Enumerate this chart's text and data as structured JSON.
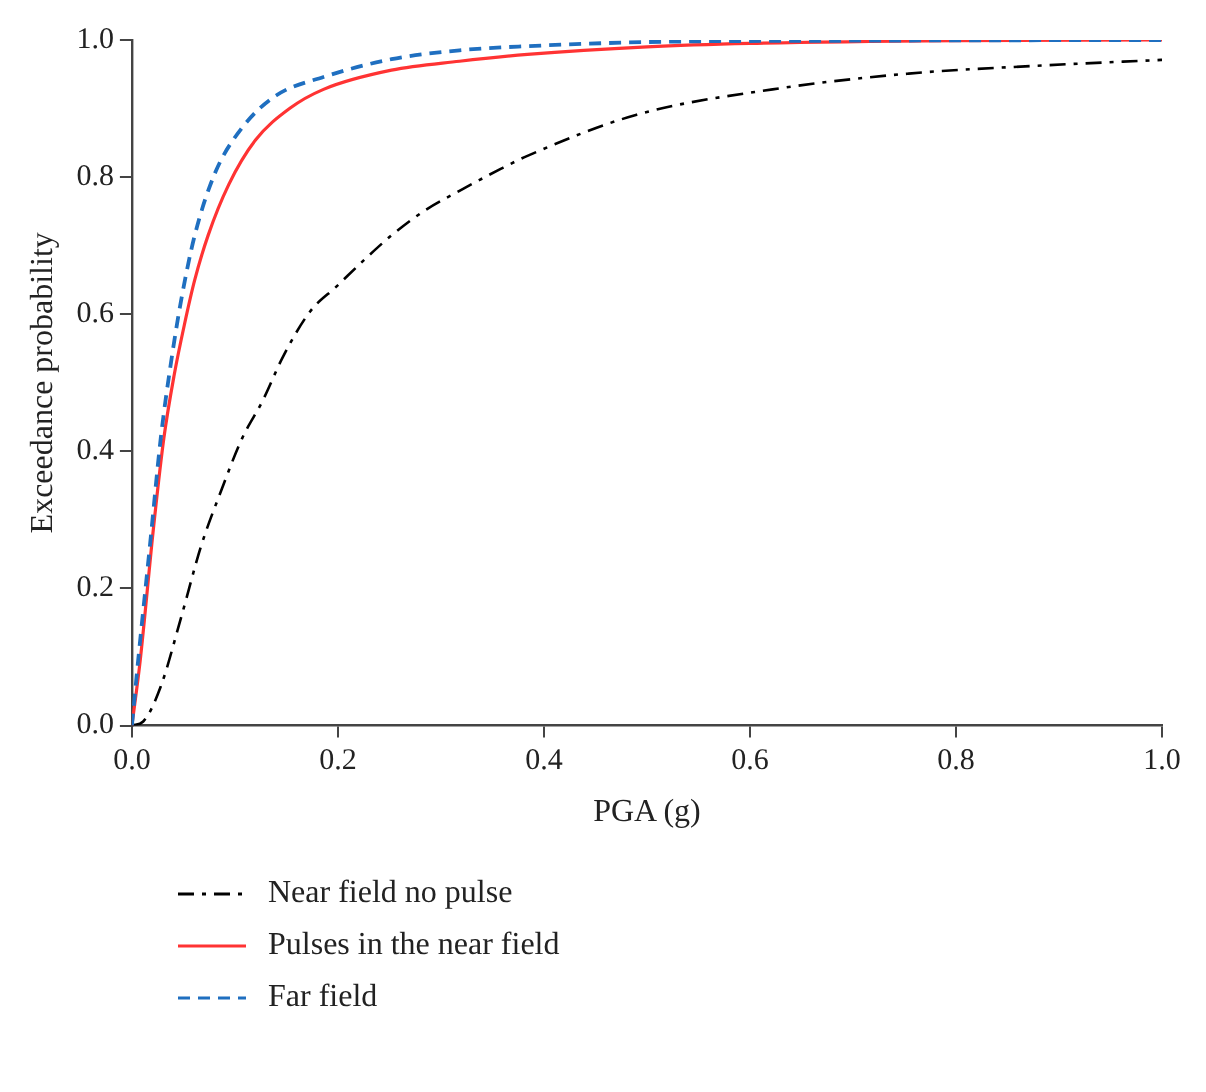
{
  "chart_data": {
    "type": "line",
    "xlabel": "PGA (g)",
    "ylabel": "Exceedance probability",
    "xlim": [
      0,
      1
    ],
    "ylim": [
      0,
      1
    ],
    "xticks": [
      {
        "value": 0,
        "label": "0.0"
      },
      {
        "value": 0.2,
        "label": "0.2"
      },
      {
        "value": 0.4,
        "label": "0.4"
      },
      {
        "value": 0.6,
        "label": "0.6"
      },
      {
        "value": 0.8,
        "label": "0.8"
      },
      {
        "value": 1,
        "label": "1.0"
      }
    ],
    "yticks": [
      {
        "value": 0,
        "label": "0.0"
      },
      {
        "value": 0.2,
        "label": "0.2"
      },
      {
        "value": 0.4,
        "label": "0.4"
      },
      {
        "value": 0.6,
        "label": "0.6"
      },
      {
        "value": 0.8,
        "label": "0.8"
      },
      {
        "value": 1,
        "label": "1.0"
      }
    ],
    "grid": false,
    "legend": "bottom",
    "marker": "none",
    "series": [
      {
        "name": "Near field no pulse",
        "color": "#000000",
        "line_style": "dashdot",
        "x": [
          0,
          0.011,
          0.028,
          0.048,
          0.067,
          0.087,
          0.107,
          0.127,
          0.147,
          0.173,
          0.199,
          0.226,
          0.252,
          0.285,
          0.318,
          0.358,
          0.384,
          0.49,
          0.622,
          0.754,
          0.886,
          1.0
        ],
        "values": [
          0,
          0.006,
          0.057,
          0.159,
          0.261,
          0.344,
          0.419,
          0.474,
          0.539,
          0.604,
          0.641,
          0.68,
          0.715,
          0.752,
          0.78,
          0.812,
          0.831,
          0.891,
          0.928,
          0.951,
          0.963,
          0.971
        ]
      },
      {
        "name": "Pulses in the near field",
        "color": "#ff3333",
        "line_style": "solid",
        "x": [
          0,
          0.008,
          0.021,
          0.031,
          0.041,
          0.051,
          0.061,
          0.074,
          0.094,
          0.12,
          0.153,
          0.186,
          0.252,
          0.318,
          0.384,
          0.5,
          0.6,
          0.8,
          1.0
        ],
        "values": [
          0,
          0.094,
          0.289,
          0.419,
          0.511,
          0.585,
          0.65,
          0.715,
          0.789,
          0.854,
          0.9,
          0.928,
          0.956,
          0.969,
          0.979,
          0.99,
          0.995,
          0.999,
          1.0
        ]
      },
      {
        "name": "Far field",
        "color": "#1f6fc0",
        "line_style": "dashed",
        "x": [
          0,
          0.006,
          0.018,
          0.028,
          0.038,
          0.048,
          0.061,
          0.081,
          0.107,
          0.14,
          0.186,
          0.252,
          0.318,
          0.384,
          0.5,
          0.7,
          1.0
        ],
        "values": [
          0,
          0.094,
          0.27,
          0.419,
          0.53,
          0.622,
          0.715,
          0.807,
          0.872,
          0.919,
          0.946,
          0.972,
          0.985,
          0.991,
          0.997,
          0.999,
          1.0
        ]
      }
    ]
  }
}
